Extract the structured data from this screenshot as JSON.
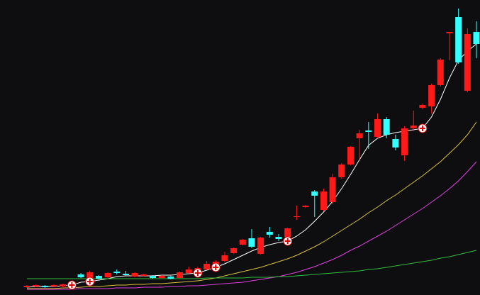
{
  "chart_data": {
    "type": "candlestick",
    "background": "#0e0d10",
    "up_color": "#ff1a1a",
    "down_color": "#33ffff",
    "ylim": [
      0,
      416
    ],
    "categories": [
      null,
      null,
      null,
      null,
      null,
      null,
      null,
      null,
      null,
      null,
      null,
      null,
      null,
      null,
      null,
      null,
      null,
      null,
      null,
      null,
      null,
      null,
      null,
      null,
      null,
      null,
      null,
      null,
      null,
      null,
      null,
      null,
      null,
      null,
      null,
      null,
      null,
      null,
      null,
      null,
      null,
      null,
      null,
      null,
      null,
      null,
      null,
      null,
      null,
      null,
      null
    ],
    "open": [
      11,
      12,
      13,
      12,
      12,
      14,
      29,
      23,
      27,
      25,
      33,
      30,
      26,
      27,
      27,
      24,
      26,
      24,
      31,
      33,
      36,
      39,
      48,
      59,
      71,
      80,
      58,
      89,
      82,
      82,
      110,
      124,
      146,
      120,
      131,
      166,
      184,
      221,
      232,
      223,
      248,
      220,
      197,
      235,
      264,
      266,
      296,
      369,
      392,
      288,
      371
    ],
    "high": [
      14,
      15,
      14,
      15,
      16,
      19,
      31,
      34,
      28,
      32,
      36,
      34,
      32,
      30,
      28,
      28,
      27,
      33,
      40,
      40,
      48,
      49,
      61,
      67,
      79,
      93,
      82,
      96,
      86,
      95,
      126,
      127,
      148,
      150,
      171,
      186,
      210,
      233,
      244,
      256,
      251,
      226,
      238,
      260,
      270,
      298,
      334,
      371,
      404,
      376,
      386
    ],
    "low": [
      10,
      11,
      10,
      11,
      11,
      13,
      24,
      21,
      22,
      24,
      29,
      27,
      25,
      26,
      23,
      23,
      22,
      23,
      30,
      32,
      35,
      37,
      46,
      58,
      70,
      66,
      57,
      81,
      76,
      80,
      106,
      123,
      110,
      118,
      128,
      164,
      183,
      191,
      206,
      221,
      221,
      204,
      189,
      231,
      262,
      256,
      294,
      331,
      326,
      286,
      334
    ],
    "close": [
      13,
      14,
      11,
      14,
      15,
      18,
      25,
      32,
      23,
      31,
      31,
      28,
      31,
      29,
      24,
      27,
      23,
      32,
      36,
      38,
      44,
      47,
      56,
      66,
      78,
      68,
      81,
      85,
      79,
      94,
      111,
      126,
      140,
      146,
      166,
      184,
      209,
      228,
      230,
      248,
      226,
      208,
      235,
      239,
      268,
      296,
      332,
      371,
      328,
      368,
      354
    ],
    "lines": [
      {
        "color": "#ffffff",
        "values": [
          11,
          12,
          12,
          12,
          13,
          14,
          18,
          19,
          21,
          23,
          26,
          27,
          27,
          27,
          27,
          28,
          28,
          29,
          30,
          31,
          35,
          39,
          44,
          50,
          56,
          62,
          67,
          71,
          74,
          76,
          83,
          92,
          104,
          117,
          132,
          150,
          170,
          191,
          211,
          221,
          226,
          229,
          231,
          233,
          235,
          251,
          276,
          306,
          331,
          344,
          354
        ]
      },
      {
        "color": "#d8c23a",
        "values": [
          9,
          9,
          9,
          9,
          10,
          10,
          11,
          12,
          12,
          13,
          14,
          14,
          15,
          15,
          16,
          16,
          17,
          18,
          19,
          20,
          22,
          24,
          27,
          30,
          33,
          36,
          39,
          43,
          47,
          51,
          56,
          62,
          68,
          75,
          83,
          91,
          99,
          107,
          116,
          124,
          133,
          141,
          150,
          159,
          168,
          178,
          188,
          200,
          212,
          226,
          244
        ]
      },
      {
        "color": "#e040e0",
        "values": [
          8,
          8,
          8,
          8,
          8,
          8,
          9,
          9,
          9,
          9,
          10,
          10,
          10,
          11,
          11,
          11,
          12,
          12,
          13,
          13,
          14,
          15,
          16,
          17,
          18,
          20,
          22,
          24,
          26,
          29,
          32,
          36,
          40,
          45,
          50,
          56,
          63,
          69,
          76,
          83,
          90,
          98,
          106,
          114,
          122,
          131,
          140,
          150,
          161,
          174,
          188
        ]
      },
      {
        "color": "#2fbf3a",
        "values": [
          23,
          23,
          23,
          23,
          23,
          23,
          23,
          23,
          23,
          23,
          23,
          23,
          23,
          23,
          23,
          23,
          23,
          23,
          23,
          23,
          24,
          24,
          24,
          24,
          24,
          25,
          25,
          25,
          26,
          26,
          27,
          28,
          29,
          30,
          31,
          32,
          33,
          34,
          36,
          37,
          39,
          41,
          43,
          45,
          47,
          49,
          52,
          54,
          57,
          60,
          63
        ]
      }
    ],
    "signals": [
      5,
      7,
      19,
      21,
      29,
      44
    ]
  }
}
